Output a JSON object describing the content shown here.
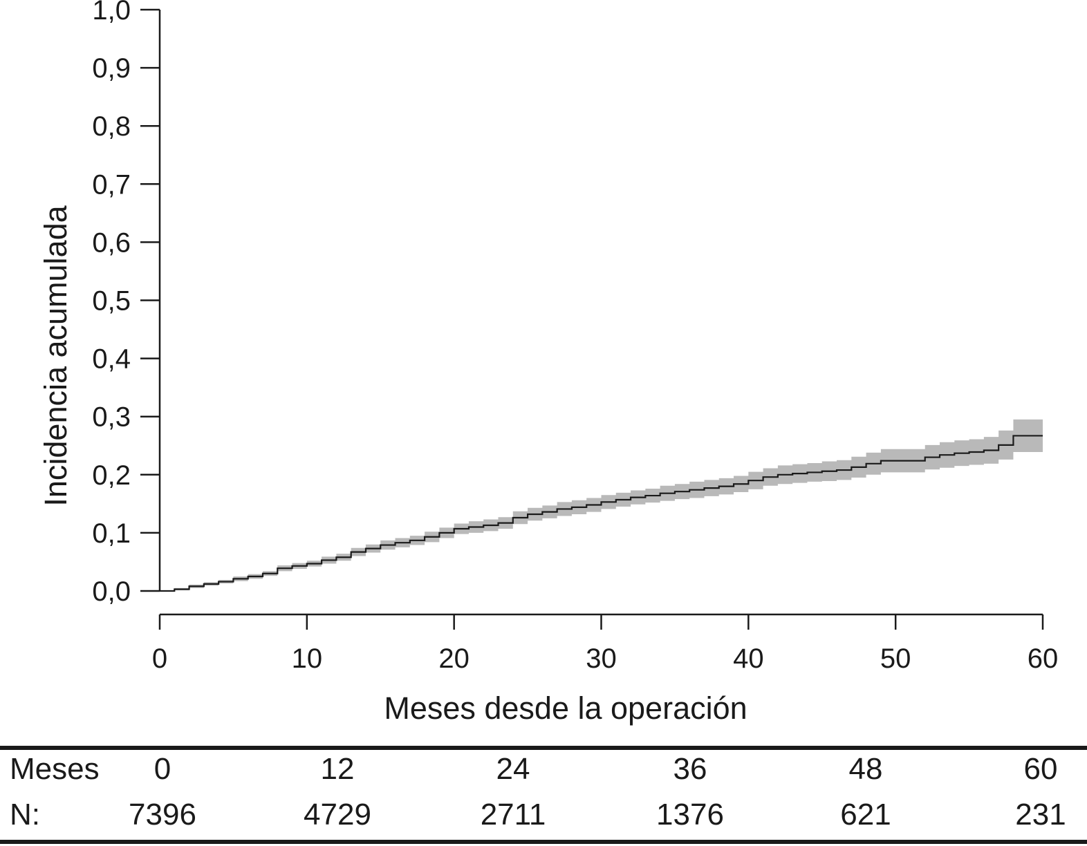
{
  "chart_data": {
    "type": "line",
    "xlabel": "Meses desde la operación",
    "ylabel": "Incidencia acumulada",
    "xlim": [
      0,
      60
    ],
    "ylim": [
      0,
      1.0
    ],
    "xticks": [
      "0",
      "10",
      "20",
      "30",
      "40",
      "50",
      "60"
    ],
    "yticks": [
      "0,0",
      "0,1",
      "0,2",
      "0,3",
      "0,4",
      "0,5",
      "0,6",
      "0,7",
      "0,8",
      "0,9",
      "1,0"
    ],
    "grid": false,
    "colors": {
      "line": "#1a1a1a",
      "band": "#b9b9b9",
      "axis": "#1a1a1a"
    },
    "series": [
      {
        "x": [
          0,
          1,
          2,
          3,
          4,
          5,
          6,
          7,
          8,
          9,
          10,
          11,
          12,
          13,
          14,
          15,
          16,
          17,
          18,
          19,
          20,
          21,
          22,
          23,
          24,
          25,
          26,
          27,
          28,
          29,
          30,
          31,
          32,
          33,
          34,
          35,
          36,
          37,
          38,
          39,
          40,
          41,
          42,
          43,
          44,
          45,
          46,
          47,
          48,
          49,
          50,
          51,
          52,
          53,
          54,
          55,
          56,
          57,
          58,
          60
        ],
        "y": [
          0.0,
          0.003,
          0.008,
          0.012,
          0.016,
          0.021,
          0.025,
          0.03,
          0.039,
          0.043,
          0.047,
          0.053,
          0.058,
          0.067,
          0.073,
          0.079,
          0.083,
          0.087,
          0.093,
          0.1,
          0.107,
          0.11,
          0.113,
          0.117,
          0.126,
          0.132,
          0.136,
          0.141,
          0.144,
          0.148,
          0.153,
          0.157,
          0.161,
          0.164,
          0.168,
          0.171,
          0.174,
          0.177,
          0.18,
          0.184,
          0.19,
          0.196,
          0.2,
          0.202,
          0.204,
          0.206,
          0.208,
          0.213,
          0.219,
          0.224,
          0.224,
          0.224,
          0.23,
          0.234,
          0.237,
          0.239,
          0.242,
          0.251,
          0.267,
          0.267
        ],
        "lower": [
          0.0,
          0.001,
          0.005,
          0.009,
          0.013,
          0.017,
          0.021,
          0.026,
          0.034,
          0.038,
          0.042,
          0.047,
          0.052,
          0.06,
          0.066,
          0.071,
          0.075,
          0.079,
          0.084,
          0.091,
          0.098,
          0.1,
          0.103,
          0.107,
          0.115,
          0.121,
          0.125,
          0.129,
          0.132,
          0.136,
          0.141,
          0.145,
          0.149,
          0.152,
          0.155,
          0.158,
          0.16,
          0.163,
          0.166,
          0.17,
          0.175,
          0.181,
          0.184,
          0.186,
          0.188,
          0.189,
          0.191,
          0.195,
          0.2,
          0.204,
          0.204,
          0.204,
          0.209,
          0.212,
          0.215,
          0.217,
          0.219,
          0.226,
          0.239,
          0.239
        ],
        "upper": [
          0.0,
          0.005,
          0.011,
          0.015,
          0.019,
          0.025,
          0.029,
          0.034,
          0.044,
          0.048,
          0.052,
          0.059,
          0.064,
          0.074,
          0.08,
          0.087,
          0.091,
          0.095,
          0.102,
          0.109,
          0.116,
          0.12,
          0.123,
          0.127,
          0.137,
          0.143,
          0.147,
          0.153,
          0.156,
          0.16,
          0.165,
          0.169,
          0.173,
          0.176,
          0.181,
          0.184,
          0.188,
          0.191,
          0.194,
          0.198,
          0.205,
          0.211,
          0.216,
          0.218,
          0.22,
          0.223,
          0.225,
          0.231,
          0.238,
          0.244,
          0.244,
          0.244,
          0.251,
          0.256,
          0.259,
          0.261,
          0.265,
          0.276,
          0.295,
          0.295
        ]
      }
    ],
    "risk_table": {
      "row1_label": "Meses",
      "months": [
        "0",
        "12",
        "24",
        "36",
        "48",
        "60"
      ],
      "row2_label": "N:",
      "counts": [
        "7396",
        "4729",
        "2711",
        "1376",
        "621",
        "231"
      ]
    }
  }
}
